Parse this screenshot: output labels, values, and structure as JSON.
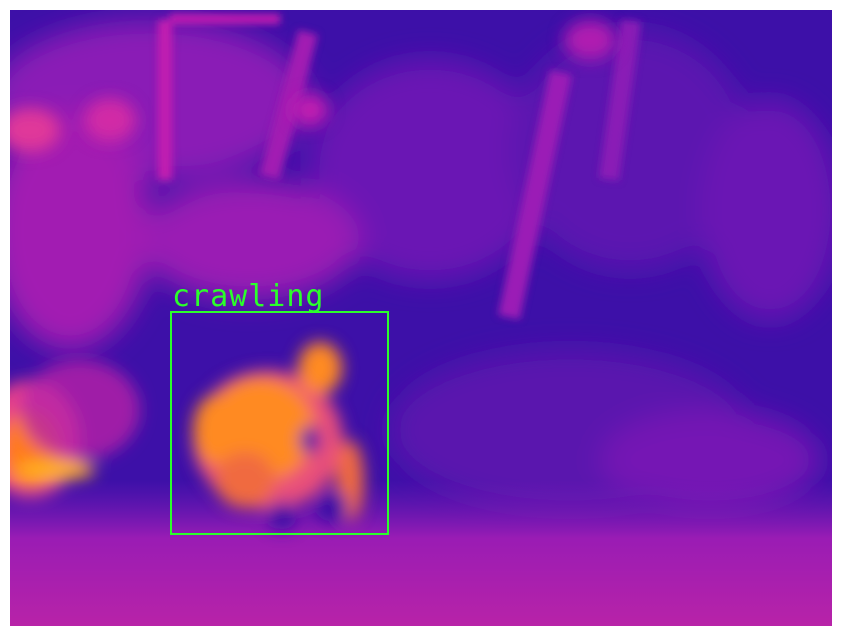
{
  "image": {
    "subject": "thermal-camera-frame",
    "palette": {
      "cold": "#3a0fa6",
      "cool": "#5a14b8",
      "warm": "#c21fb0",
      "hot": "#ff7a1a",
      "hottest": "#ffb020"
    }
  },
  "detection": {
    "label": "crawling",
    "box_color": "#2bff2b"
  }
}
